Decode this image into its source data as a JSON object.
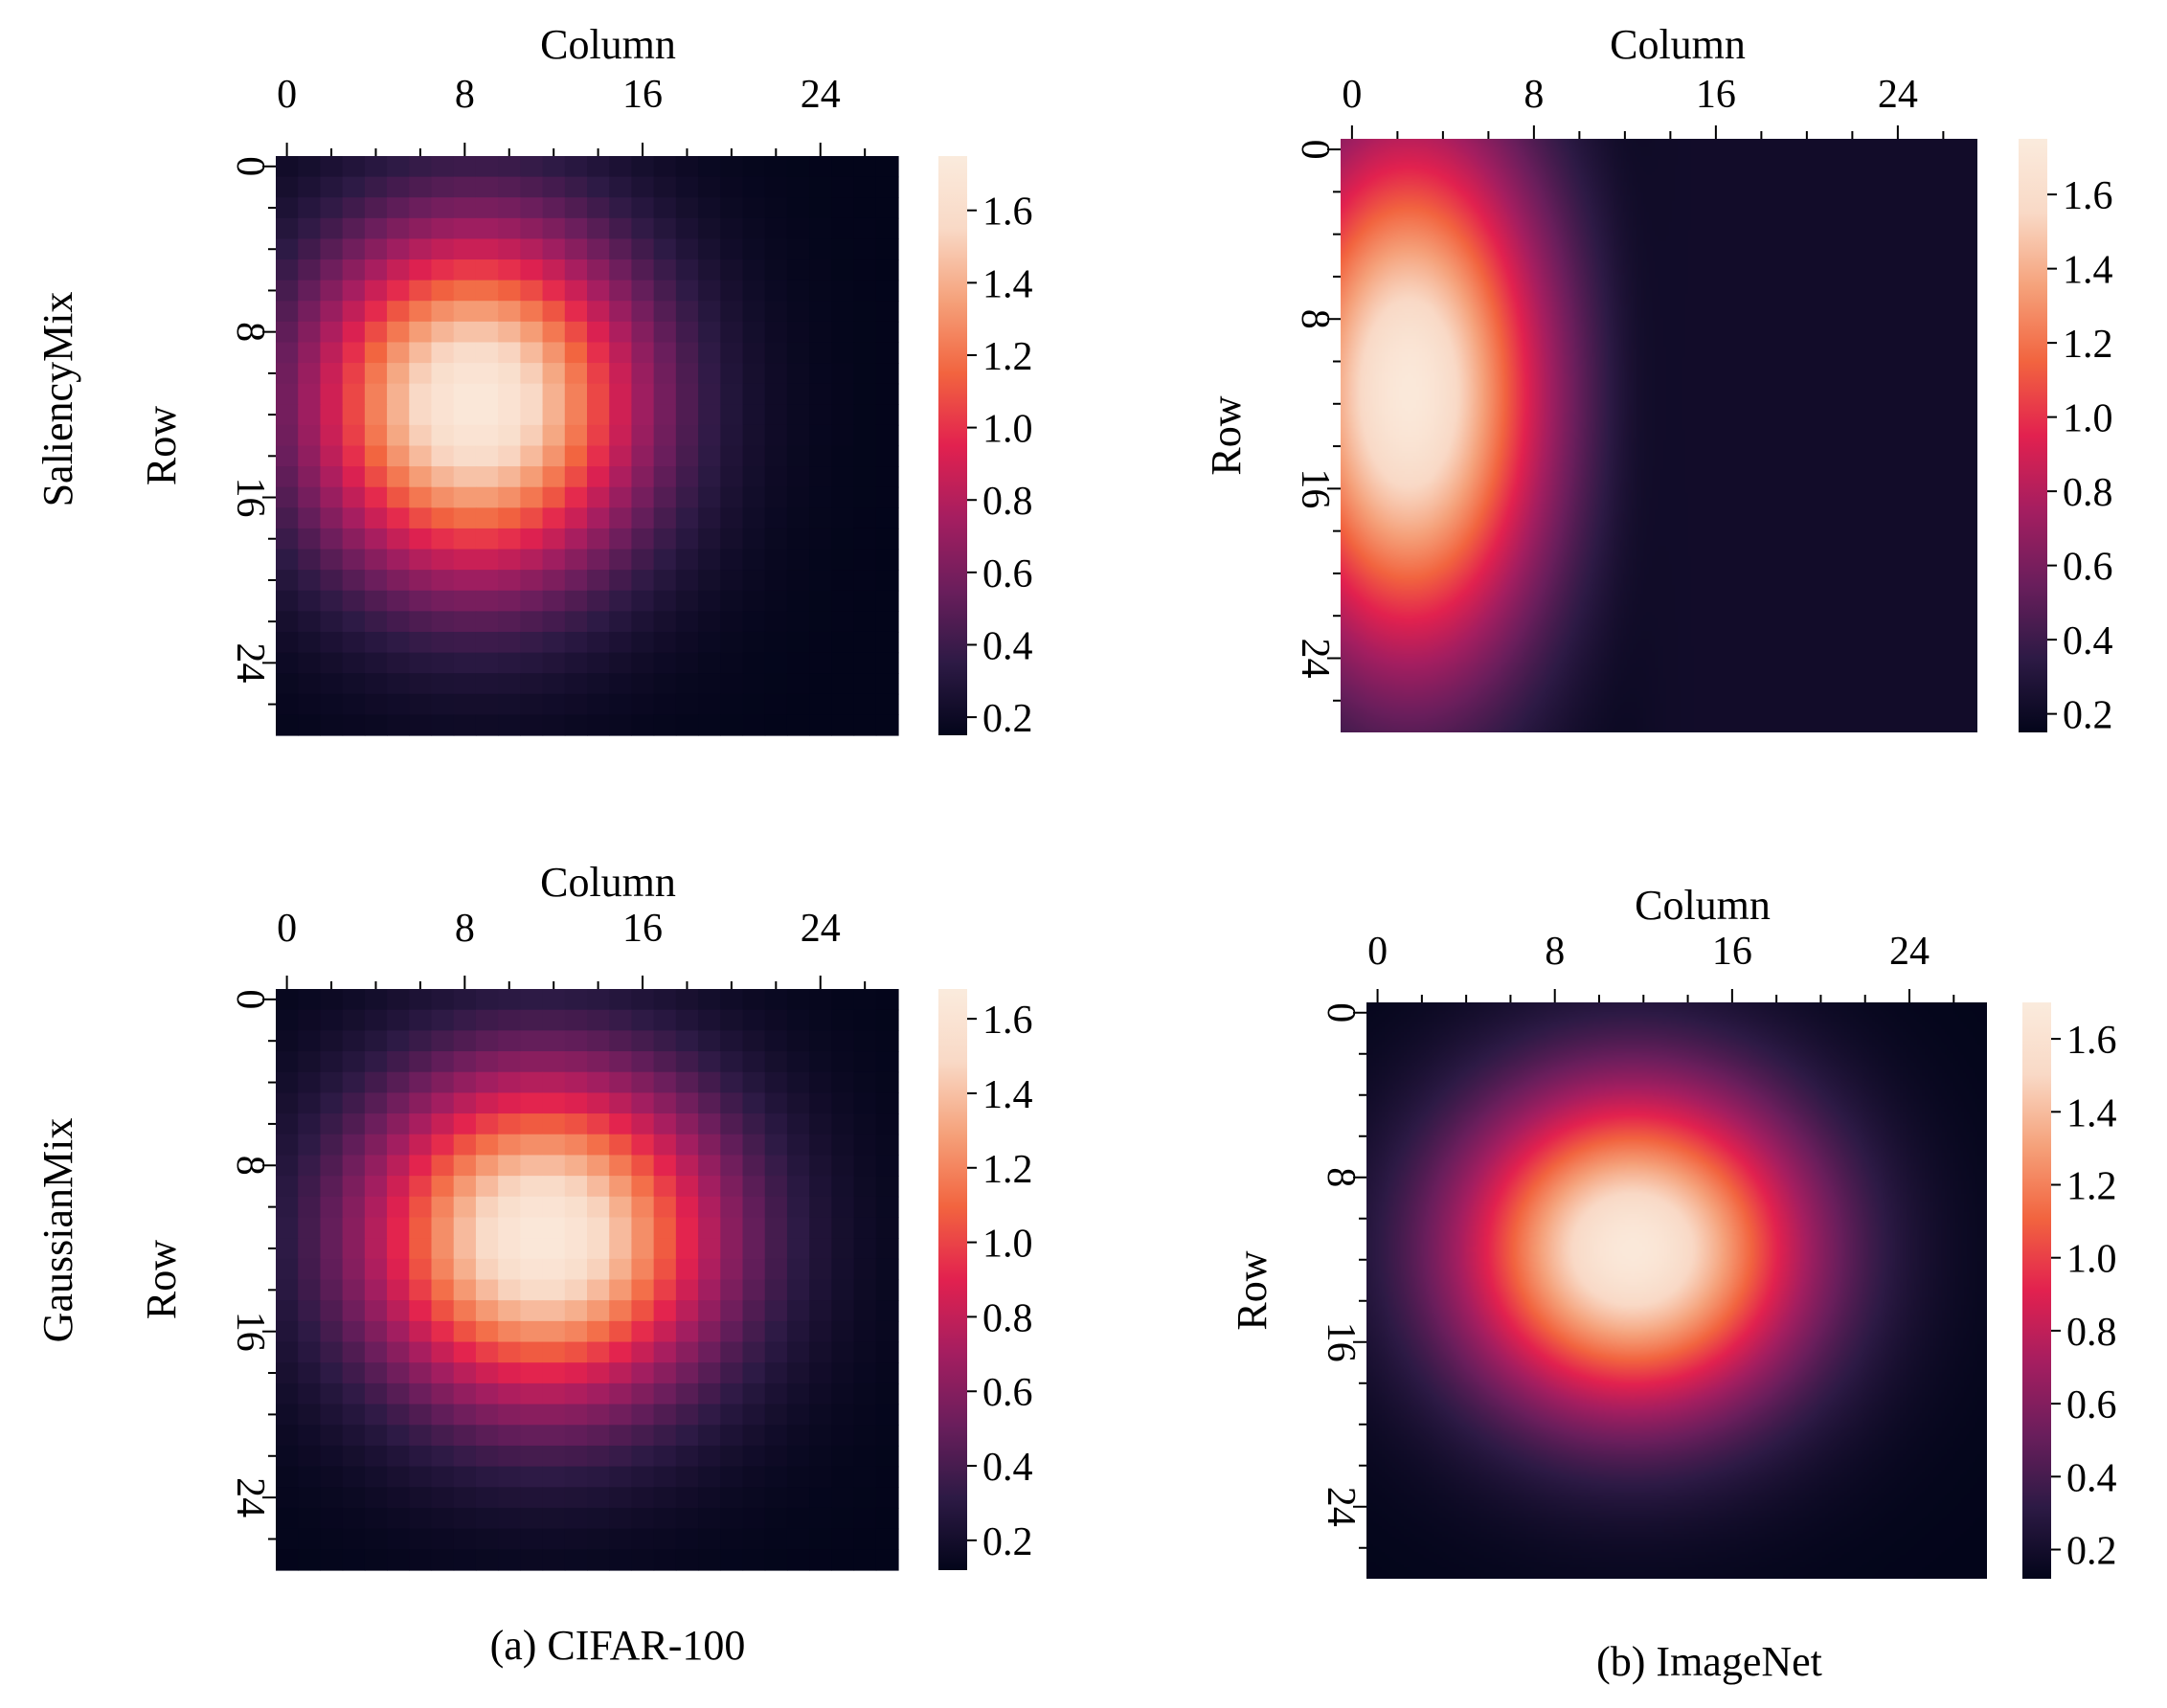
{
  "row_labels": [
    "SaliencyMix",
    "GaussianMix"
  ],
  "captions": [
    "(a) CIFAR-100",
    "(b) ImageNet"
  ],
  "colormap": {
    "name": "rocket",
    "stops": [
      "#03051a",
      "#2d1a45",
      "#6a1e5c",
      "#a51e60",
      "#e2214f",
      "#f2643f",
      "#f5a17a",
      "#f9d9c6",
      "#faebdd"
    ]
  },
  "chart_data": [
    {
      "type": "heatmap",
      "dataset": "CIFAR-100",
      "method": "SaliencyMix",
      "grid": [
        28,
        28
      ],
      "xlabel": "Column",
      "ylabel": "Row",
      "xticks": [
        0,
        8,
        16,
        24
      ],
      "yticks": [
        0,
        8,
        16,
        24
      ],
      "colorbar_ticks": [
        1.6,
        1.4,
        1.2,
        1.0,
        0.8,
        0.6,
        0.4,
        0.2
      ],
      "colorbar_tick_labels": [
        "1.6",
        "1.4",
        "1.2",
        "1.0",
        "0.8",
        "0.6",
        "0.4",
        "0.2"
      ],
      "vmin": 0.15,
      "vmax": 1.75,
      "field": {
        "peak": 1.72,
        "center": [
          8.5,
          11.5
        ],
        "sigma": [
          7.5,
          8.5
        ],
        "floor": 0.15
      }
    },
    {
      "type": "heatmap",
      "dataset": "ImageNet",
      "method": "SaliencyMix",
      "grid": [
        224,
        224
      ],
      "xlabel": "Column",
      "ylabel": "Row",
      "xticks": [
        0,
        8,
        16,
        24
      ],
      "yticks": [
        0,
        8,
        16,
        24
      ],
      "colorbar_ticks": [
        1.6,
        1.4,
        1.2,
        1.0,
        0.8,
        0.6,
        0.4,
        0.2
      ],
      "colorbar_tick_labels": [
        "1.6",
        "1.4",
        "1.2",
        "1.0",
        "0.8",
        "0.6",
        "0.4",
        "0.2"
      ],
      "vmin": 0.15,
      "vmax": 1.75,
      "field": {
        "peak": 1.72,
        "center": [
          2.5,
          11.5
        ],
        "sigma": [
          6.3,
          13
        ],
        "floor": 0.15,
        "edge_column": 12.5,
        "edge_width": 0.6,
        "right_side_level": 0.22
      }
    },
    {
      "type": "heatmap",
      "dataset": "CIFAR-100",
      "method": "GaussianMix",
      "grid": [
        28,
        28
      ],
      "xlabel": "Column",
      "ylabel": "Row",
      "xticks": [
        0,
        8,
        16,
        24
      ],
      "yticks": [
        0,
        8,
        16,
        24
      ],
      "colorbar_ticks": [
        1.6,
        1.4,
        1.2,
        1.0,
        0.8,
        0.6,
        0.4,
        0.2
      ],
      "colorbar_tick_labels": [
        "1.6",
        "1.4",
        "1.2",
        "1.0",
        "0.8",
        "0.6",
        "0.4",
        "0.2"
      ],
      "vmin": 0.12,
      "vmax": 1.68,
      "field": {
        "peak": 1.65,
        "center": [
          11.5,
          11.5
        ],
        "sigma": [
          8,
          8
        ],
        "floor": 0.12
      }
    },
    {
      "type": "heatmap",
      "dataset": "ImageNet",
      "method": "GaussianMix",
      "grid": [
        224,
        224
      ],
      "xlabel": "Column",
      "ylabel": "Row",
      "xticks": [
        0,
        8,
        16,
        24
      ],
      "yticks": [
        0,
        8,
        16,
        24
      ],
      "colorbar_ticks": [
        1.6,
        1.4,
        1.2,
        1.0,
        0.8,
        0.6,
        0.4,
        0.2
      ],
      "colorbar_tick_labels": [
        "1.6",
        "1.4",
        "1.2",
        "1.0",
        "0.8",
        "0.6",
        "0.4",
        "0.2"
      ],
      "vmin": 0.12,
      "vmax": 1.7,
      "field": {
        "peak": 1.67,
        "center": [
          11.5,
          11.5
        ],
        "sigma": [
          8,
          8
        ],
        "floor": 0.12
      }
    }
  ]
}
